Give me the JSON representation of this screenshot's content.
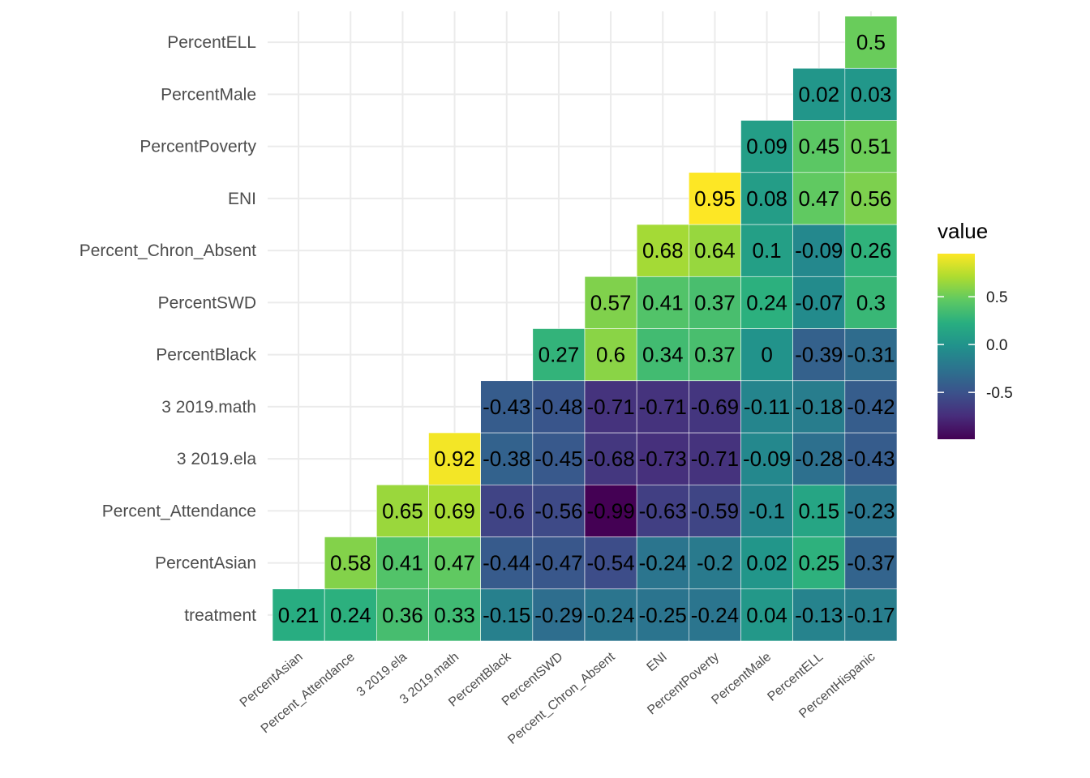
{
  "chart_data": {
    "type": "heatmap",
    "title": "",
    "xlabel": "",
    "ylabel": "",
    "x_categories": [
      "PercentAsian",
      "Percent_Attendance",
      "3 2019.ela",
      "3 2019.math",
      "PercentBlack",
      "PercentSWD",
      "Percent_Chron_Absent",
      "ENI",
      "PercentPoverty",
      "PercentMale",
      "PercentELL",
      "PercentHispanic"
    ],
    "y_categories": [
      "treatment",
      "PercentAsian",
      "Percent_Attendance",
      "3 2019.ela",
      "3 2019.math",
      "PercentBlack",
      "PercentSWD",
      "Percent_Chron_Absent",
      "ENI",
      "PercentPoverty",
      "PercentMale",
      "PercentELL"
    ],
    "rows": [
      [
        0.21,
        0.24,
        0.36,
        0.33,
        -0.15,
        -0.29,
        -0.24,
        -0.25,
        -0.24,
        0.04,
        -0.13,
        -0.17
      ],
      [
        null,
        0.58,
        0.41,
        0.47,
        -0.44,
        -0.47,
        -0.54,
        -0.24,
        -0.2,
        0.02,
        0.25,
        -0.37
      ],
      [
        null,
        null,
        0.65,
        0.69,
        -0.6,
        -0.56,
        -0.99,
        -0.63,
        -0.59,
        -0.1,
        0.15,
        -0.23
      ],
      [
        null,
        null,
        null,
        0.92,
        -0.38,
        -0.45,
        -0.68,
        -0.73,
        -0.71,
        -0.09,
        -0.28,
        -0.43
      ],
      [
        null,
        null,
        null,
        null,
        -0.43,
        -0.48,
        -0.71,
        -0.71,
        -0.69,
        -0.11,
        -0.18,
        -0.42
      ],
      [
        null,
        null,
        null,
        null,
        null,
        0.27,
        0.6,
        0.34,
        0.37,
        0,
        -0.39,
        -0.31
      ],
      [
        null,
        null,
        null,
        null,
        null,
        null,
        0.57,
        0.41,
        0.37,
        0.24,
        -0.07,
        0.3
      ],
      [
        null,
        null,
        null,
        null,
        null,
        null,
        null,
        0.68,
        0.64,
        0.1,
        -0.09,
        0.26
      ],
      [
        null,
        null,
        null,
        null,
        null,
        null,
        null,
        null,
        0.95,
        0.08,
        0.47,
        0.56
      ],
      [
        null,
        null,
        null,
        null,
        null,
        null,
        null,
        null,
        null,
        0.09,
        0.45,
        0.51
      ],
      [
        null,
        null,
        null,
        null,
        null,
        null,
        null,
        null,
        null,
        null,
        0.02,
        0.03
      ],
      [
        null,
        null,
        null,
        null,
        null,
        null,
        null,
        null,
        null,
        null,
        null,
        0.5
      ]
    ],
    "cell_labels": [
      [
        "0.21",
        "0.24",
        "0.36",
        "0.33",
        "-0.15",
        "-0.29",
        "-0.24",
        "-0.25",
        "-0.24",
        "0.04",
        "-0.13",
        "-0.17"
      ],
      [
        null,
        "0.58",
        "0.41",
        "0.47",
        "-0.44",
        "-0.47",
        "-0.54",
        "-0.24",
        "-0.2",
        "0.02",
        "0.25",
        "-0.37"
      ],
      [
        null,
        null,
        "0.65",
        "0.69",
        "-0.6",
        "-0.56",
        "-0.99",
        "-0.63",
        "-0.59",
        "-0.1",
        "0.15",
        "-0.23"
      ],
      [
        null,
        null,
        null,
        "0.92",
        "-0.38",
        "-0.45",
        "-0.68",
        "-0.73",
        "-0.71",
        "-0.09",
        "-0.28",
        "-0.43"
      ],
      [
        null,
        null,
        null,
        null,
        "-0.43",
        "-0.48",
        "-0.71",
        "-0.71",
        "-0.69",
        "-0.11",
        "-0.18",
        "-0.42"
      ],
      [
        null,
        null,
        null,
        null,
        null,
        "0.27",
        "0.6",
        "0.34",
        "0.37",
        "0",
        "-0.39",
        "-0.31"
      ],
      [
        null,
        null,
        null,
        null,
        null,
        null,
        "0.57",
        "0.41",
        "0.37",
        "0.24",
        "-0.07",
        "0.3"
      ],
      [
        null,
        null,
        null,
        null,
        null,
        null,
        null,
        "0.68",
        "0.64",
        "0.1",
        "-0.09",
        "0.26"
      ],
      [
        null,
        null,
        null,
        null,
        null,
        null,
        null,
        null,
        "0.95",
        "0.08",
        "0.47",
        "0.56"
      ],
      [
        null,
        null,
        null,
        null,
        null,
        null,
        null,
        null,
        null,
        "0.09",
        "0.45",
        "0.51"
      ],
      [
        null,
        null,
        null,
        null,
        null,
        null,
        null,
        null,
        null,
        null,
        "0.02",
        "0.03"
      ],
      [
        null,
        null,
        null,
        null,
        null,
        null,
        null,
        null,
        null,
        null,
        null,
        "0.5"
      ]
    ],
    "color_scale": {
      "name": "viridis",
      "domain": [
        -0.99,
        0.95
      ],
      "stops": [
        "#440154",
        "#472d7b",
        "#3b528b",
        "#2c728e",
        "#21918c",
        "#28ae80",
        "#5ec962",
        "#addc30",
        "#fde725"
      ]
    },
    "legend": {
      "title": "value",
      "ticks": [
        0.5,
        0.0,
        -0.5
      ],
      "tick_labels": [
        "0.5",
        "0.0",
        "-0.5"
      ],
      "placement": "right"
    },
    "grid": true
  }
}
